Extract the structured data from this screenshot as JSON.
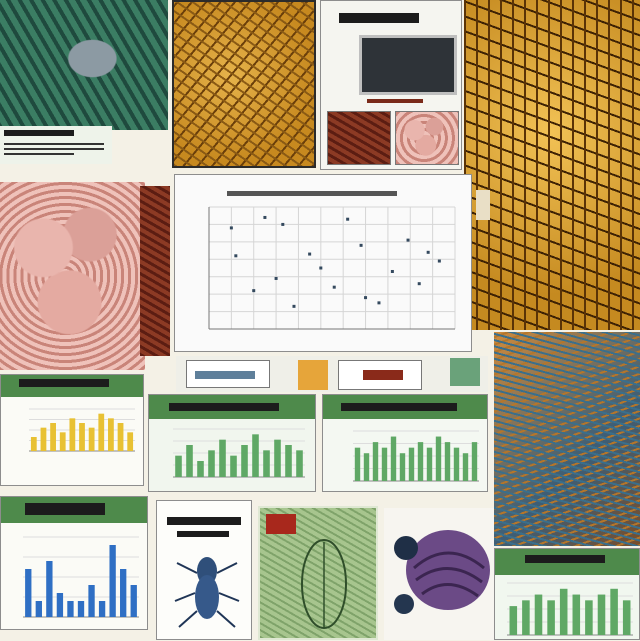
{
  "collage": {
    "tiles": [
      {
        "name": "leaf-specimen-image"
      },
      {
        "name": "amber-specimen-image"
      },
      {
        "name": "monitor-specimen-card"
      },
      {
        "name": "amber-venation-image"
      },
      {
        "name": "brain-tissue-image"
      },
      {
        "name": "scatter-chart-card"
      },
      {
        "name": "thumbnail-strip"
      },
      {
        "name": "bar-chart-card-yellow"
      },
      {
        "name": "bar-chart-card-green"
      },
      {
        "name": "bar-chart-card-green-2"
      },
      {
        "name": "fish-texture-image"
      },
      {
        "name": "bar-chart-card-blue"
      },
      {
        "name": "insect-illustration-card"
      },
      {
        "name": "leaf-drawing-card"
      },
      {
        "name": "purple-shell-image"
      },
      {
        "name": "bar-chart-card-green-3"
      }
    ]
  },
  "colors": {
    "green_header": "#4e8a4b",
    "yellow_bars": "#e8c133",
    "green_bars": "#5fa865",
    "blue_bars": "#2f6fc4",
    "scatter_points": "#34495e"
  },
  "chart_data": [
    {
      "type": "scatter",
      "x": [
        1,
        1.2,
        2,
        2.5,
        3,
        3.3,
        3.8,
        4.5,
        5,
        5.6,
        6.2,
        6.8,
        7,
        7.6,
        8.2,
        8.9,
        9.4,
        9.8,
        10.3
      ],
      "y": [
        5.8,
        4.2,
        2.2,
        6.4,
        2.9,
        6.0,
        1.3,
        4.3,
        3.5,
        2.4,
        6.3,
        4.8,
        1.8,
        1.5,
        3.3,
        5.1,
        2.6,
        4.4,
        3.9
      ]
    },
    {
      "type": "bar",
      "values": [
        3,
        5,
        6,
        4,
        7,
        6,
        5,
        8,
        7,
        6,
        4
      ]
    },
    {
      "type": "bar",
      "values": [
        4,
        6,
        3,
        5,
        7,
        4,
        6,
        8,
        5,
        7,
        6,
        5
      ]
    },
    {
      "type": "bar",
      "values": [
        6,
        5,
        7,
        6,
        8,
        5,
        6,
        7,
        6,
        8,
        7,
        6,
        5,
        7
      ]
    },
    {
      "type": "bar",
      "values": [
        6,
        2,
        7,
        3,
        2,
        2,
        4,
        2,
        9,
        6,
        4
      ]
    },
    {
      "type": "bar",
      "values": [
        5,
        6,
        7,
        6,
        8,
        7,
        6,
        7,
        8,
        6
      ]
    }
  ]
}
